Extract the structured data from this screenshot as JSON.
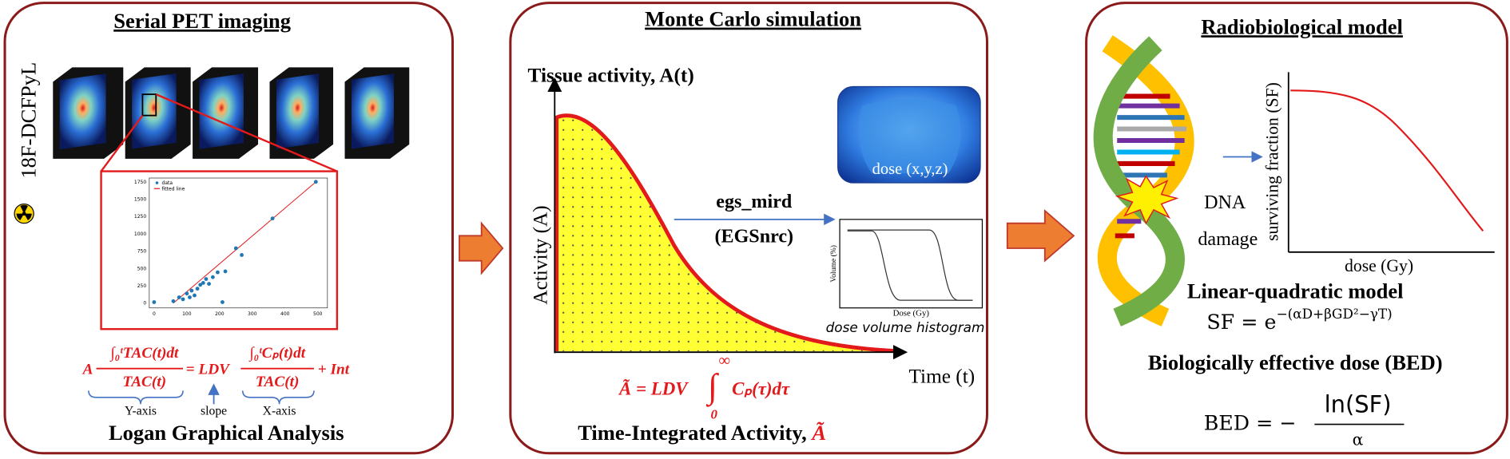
{
  "panels": [
    {
      "title": "Serial PET imaging",
      "tracer": "18F-DCFPyL",
      "plot": {
        "legend": [
          "data",
          "fitted line"
        ],
        "yticks": [
          "0",
          "250",
          "500",
          "750",
          "1000",
          "1250",
          "1500",
          "1750"
        ],
        "xticks": [
          "0",
          "100",
          "200",
          "300",
          "400",
          "500"
        ]
      },
      "equation": {
        "lhs_coef": "A",
        "lhs_num": "∫₀ᵗTAC(t)dt",
        "lhs_den": "TAC(t)",
        "mid": "= LDV",
        "rhs_num": "∫₀ᵗCₚ(t)dt",
        "rhs_den": "TAC(t)",
        "tail": "+ Int"
      },
      "brace_labels": [
        "Y-axis",
        "slope",
        "X-axis"
      ],
      "caption": "Logan Graphical Analysis"
    },
    {
      "title": "Monte Carlo simulation",
      "y_title": "Tissue activity, A(t)",
      "y_label": "Activity (A)",
      "x_label": "Time (t)",
      "code": "egs_mird",
      "code_package": "(EGSnrc)",
      "dose_map": "dose (x,y,z)",
      "dvh": {
        "y_label": "Volume (%)",
        "x_label": "Dose (Gy)",
        "caption": "dose volume histogram"
      },
      "equation": {
        "lhs": "Ã = LDV",
        "integral": "∫",
        "lower": "0",
        "upper": "∞",
        "integrand": "Cₚ(τ)dτ"
      },
      "caption": "Time-Integrated Activity,",
      "caption_symbol": "Ã"
    },
    {
      "title": "Radiobiological model",
      "plot": {
        "y_label": "surviving fraction (SF)",
        "x_label": "dose (Gy)"
      },
      "damage_label": [
        "DNA",
        "damage"
      ],
      "model": "Linear-quadratic model",
      "lq_equation": {
        "base": "SF = e",
        "exponent": "−(αD+βGD²−γT)"
      },
      "bed_title": "Biologically effective dose (BED)",
      "bed_equation": {
        "lhs": "BED = −",
        "numerator": "ln(SF)",
        "denominator": "α"
      }
    }
  ]
}
